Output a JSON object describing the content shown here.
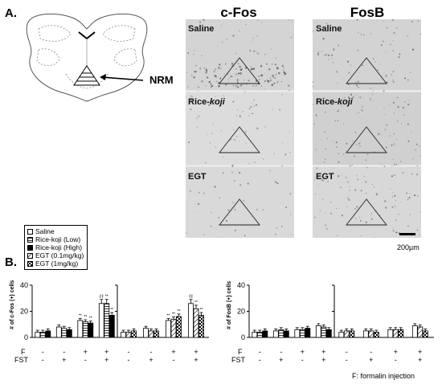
{
  "panel_a": {
    "letter": "A.",
    "region_label": "NRM",
    "columns": [
      "c-Fos",
      "FosB"
    ],
    "rows": [
      {
        "main": "Saline",
        "italic": ""
      },
      {
        "main": "Rice-",
        "italic": "koji"
      },
      {
        "main": "EGT",
        "italic": ""
      }
    ],
    "scale_bar": "200µm"
  },
  "panel_b": {
    "letter": "B.",
    "legend": [
      {
        "label": "Saline",
        "pattern": "white"
      },
      {
        "label": "Rice-koji (Low)",
        "pattern": "hlines"
      },
      {
        "label": "Rice-koji (High)",
        "pattern": "black"
      },
      {
        "label": "EGT (0.1mg/kg)",
        "pattern": "diag"
      },
      {
        "label": "EGT (1mg/kg)",
        "pattern": "check"
      }
    ],
    "row_labels": [
      "F",
      "FST"
    ],
    "conditions": [
      {
        "F": "-",
        "FST": "-"
      },
      {
        "F": "-",
        "FST": "+"
      },
      {
        "F": "+",
        "FST": "-"
      },
      {
        "F": "+",
        "FST": "+"
      }
    ],
    "footnote": "F: formalin injection",
    "markers": {
      "sig_a": "**",
      "sig_b": "‡‡",
      "sig_c": "b"
    }
  },
  "chart_data": [
    {
      "type": "bar",
      "ylabel": "# of c-Fos (+) cells",
      "ylim": [
        0,
        40
      ],
      "yticks": [
        0,
        20,
        40
      ],
      "categories": [
        "F- FST-",
        "F- FST+",
        "F+ FST-",
        "F+ FST+"
      ],
      "series": [
        {
          "name": "Saline",
          "values": [
            4,
            8,
            13,
            26
          ]
        },
        {
          "name": "Rice-koji (Low)",
          "values": [
            4,
            7,
            12,
            26
          ]
        },
        {
          "name": "Rice-koji (High)",
          "values": [
            5,
            6,
            11,
            17
          ]
        }
      ]
    },
    {
      "type": "bar",
      "ylabel": "",
      "ylim": [
        0,
        40
      ],
      "yticks": [
        0,
        20,
        40
      ],
      "categories": [
        "F- FST-",
        "F- FST+",
        "F+ FST-",
        "F+ FST+"
      ],
      "series": [
        {
          "name": "Saline",
          "values": [
            4,
            7,
            13,
            26
          ]
        },
        {
          "name": "EGT (0.1mg/kg)",
          "values": [
            4,
            5,
            14,
            22
          ]
        },
        {
          "name": "EGT (1mg/kg)",
          "values": [
            5,
            5,
            16,
            17
          ]
        }
      ]
    },
    {
      "type": "bar",
      "ylabel": "# of FosB (+) cells",
      "ylim": [
        0,
        40
      ],
      "yticks": [
        0,
        20,
        40
      ],
      "categories": [
        "F- FST-",
        "F- FST+",
        "F+ FST-",
        "F+ FST+"
      ],
      "series": [
        {
          "name": "Saline",
          "values": [
            4,
            5,
            6,
            9
          ]
        },
        {
          "name": "Rice-koji (Low)",
          "values": [
            4,
            6,
            6,
            8
          ]
        },
        {
          "name": "Rice-koji (High)",
          "values": [
            5,
            5,
            7,
            6
          ]
        }
      ]
    },
    {
      "type": "bar",
      "ylabel": "",
      "ylim": [
        0,
        40
      ],
      "yticks": [
        0,
        20,
        40
      ],
      "categories": [
        "F- FST-",
        "F- FST+",
        "F+ FST-",
        "F+ FST+"
      ],
      "series": [
        {
          "name": "Saline",
          "values": [
            4,
            5,
            6,
            9
          ]
        },
        {
          "name": "EGT (0.1mg/kg)",
          "values": [
            5,
            5,
            6,
            8
          ]
        },
        {
          "name": "EGT (1mg/kg)",
          "values": [
            5,
            4,
            6,
            5
          ]
        }
      ]
    }
  ]
}
